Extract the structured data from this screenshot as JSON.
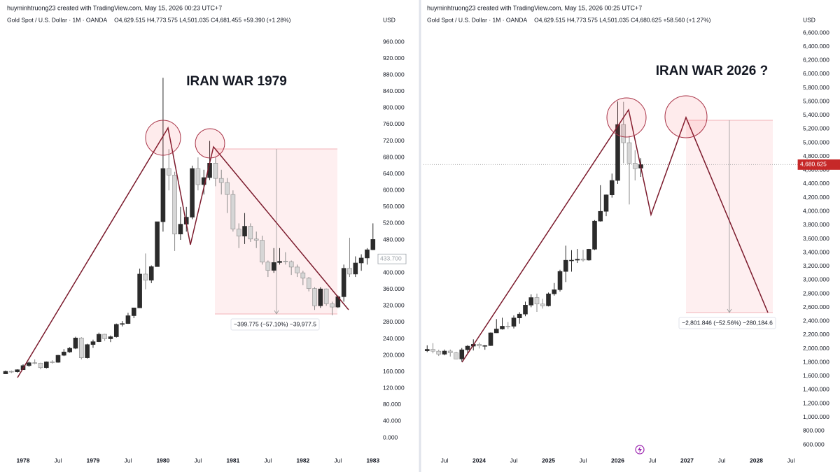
{
  "chart_data": [
    {
      "type": "candlestick",
      "attribution": "huyminhtruong23 created with TradingView.com, May 15, 2026 00:23 UTC+7",
      "symbol": "Gold Spot / U.S. Dollar · 1M · OANDA",
      "ohlc": "O4,629.515   H4,773.575   L4,501.035   C4,681.455   +59.390 (+1.28%)",
      "currency": "USD",
      "annotation": "IRAN WAR 1979",
      "measure_label": "−399.775 (−57.10%) −39,977.5",
      "up_color": "#2b2b2b",
      "down_color": "#d6d6d6",
      "x": [
        "1977-10",
        "1977-11",
        "1977-12",
        "1978-01",
        "1978-02",
        "1978-03",
        "1978-04",
        "1978-05",
        "1978-06",
        "1978-07",
        "1978-08",
        "1978-09",
        "1978-10",
        "1978-11",
        "1978-12",
        "1979-01",
        "1979-02",
        "1979-03",
        "1979-04",
        "1979-05",
        "1979-06",
        "1979-07",
        "1979-08",
        "1979-09",
        "1979-10",
        "1979-11",
        "1979-12",
        "1980-01",
        "1980-02",
        "1980-03",
        "1980-04",
        "1980-05",
        "1980-06",
        "1980-07",
        "1980-08",
        "1980-09",
        "1980-10",
        "1980-11",
        "1980-12",
        "1981-01",
        "1981-02",
        "1981-03",
        "1981-04",
        "1981-05",
        "1981-06",
        "1981-07",
        "1981-08",
        "1981-09",
        "1981-10",
        "1981-11",
        "1981-12",
        "1982-01",
        "1982-02",
        "1982-03",
        "1982-04",
        "1982-05",
        "1982-06",
        "1982-07",
        "1982-08",
        "1982-09",
        "1982-10",
        "1982-11",
        "1982-12",
        "1983-01"
      ],
      "open": [
        155,
        161,
        160,
        165,
        175,
        182,
        181,
        170,
        184,
        183,
        200,
        208,
        217,
        242,
        194,
        226,
        233,
        251,
        240,
        245,
        275,
        277,
        296,
        315,
        397,
        382,
        415,
        524,
        653,
        637,
        494,
        518,
        535,
        653,
        614,
        631,
        666,
        629,
        619,
        590,
        506,
        489,
        513,
        482,
        479,
        426,
        406,
        425,
        428,
        427,
        414,
        400,
        387,
        362,
        320,
        361,
        325,
        317,
        342,
        411,
        397,
        424,
        436,
        456
      ],
      "high": [
        163,
        163,
        166,
        178,
        185,
        190,
        182,
        185,
        188,
        201,
        215,
        220,
        245,
        244,
        228,
        238,
        255,
        252,
        248,
        277,
        283,
        303,
        315,
        410,
        447,
        418,
        524,
        873,
        700,
        645,
        560,
        560,
        660,
        680,
        650,
        720,
        680,
        650,
        630,
        600,
        520,
        545,
        520,
        500,
        490,
        430,
        460,
        460,
        450,
        430,
        420,
        405,
        390,
        365,
        365,
        362,
        330,
        345,
        420,
        485,
        440,
        445,
        460,
        520
      ],
      "low": [
        155,
        157,
        158,
        165,
        172,
        178,
        166,
        168,
        180,
        182,
        198,
        206,
        215,
        190,
        192,
        218,
        232,
        235,
        232,
        243,
        270,
        276,
        290,
        315,
        360,
        375,
        415,
        500,
        600,
        453,
        480,
        500,
        530,
        600,
        590,
        625,
        610,
        590,
        545,
        500,
        460,
        470,
        475,
        460,
        420,
        390,
        400,
        420,
        420,
        395,
        390,
        370,
        355,
        310,
        315,
        320,
        297,
        315,
        330,
        390,
        390,
        405,
        420,
        455
      ],
      "close": [
        161,
        160,
        165,
        175,
        182,
        181,
        170,
        184,
        183,
        200,
        208,
        217,
        242,
        194,
        226,
        233,
        251,
        240,
        245,
        275,
        277,
        296,
        315,
        397,
        382,
        415,
        524,
        653,
        637,
        494,
        518,
        535,
        653,
        614,
        631,
        666,
        629,
        619,
        590,
        506,
        489,
        513,
        482,
        479,
        426,
        406,
        425,
        428,
        427,
        414,
        400,
        387,
        362,
        320,
        361,
        325,
        317,
        342,
        411,
        397,
        424,
        436,
        456,
        481
      ],
      "last_price": {
        "value": 433.7,
        "label": "433.700"
      },
      "ylim": [
        0,
        960
      ],
      "yticks": [
        {
          "value": 0,
          "label": "0.000"
        },
        {
          "value": 40,
          "label": "40.000"
        },
        {
          "value": 80,
          "label": "80.000"
        },
        {
          "value": 120,
          "label": "120.000"
        },
        {
          "value": 160,
          "label": "160.000"
        },
        {
          "value": 200,
          "label": "200.000"
        },
        {
          "value": 240,
          "label": "240.000"
        },
        {
          "value": 280,
          "label": "280.000"
        },
        {
          "value": 320,
          "label": "320.000"
        },
        {
          "value": 360,
          "label": "360.000"
        },
        {
          "value": 400,
          "label": "400.000"
        },
        {
          "value": 440,
          "label": "440.000"
        },
        {
          "value": 480,
          "label": "480.000"
        },
        {
          "value": 520,
          "label": "520.000"
        },
        {
          "value": 560,
          "label": "560.000"
        },
        {
          "value": 600,
          "label": "600.000"
        },
        {
          "value": 640,
          "label": "640.000"
        },
        {
          "value": 680,
          "label": "680.000"
        },
        {
          "value": 720,
          "label": "720.000"
        },
        {
          "value": 760,
          "label": "760.000"
        },
        {
          "value": 800,
          "label": "800.000"
        },
        {
          "value": 840,
          "label": "840.000"
        },
        {
          "value": 880,
          "label": "880.000"
        },
        {
          "value": 920,
          "label": "920.000"
        },
        {
          "value": 960,
          "label": "960.000"
        }
      ],
      "xticks": [
        {
          "value": "1978-01",
          "label": "1978"
        },
        {
          "value": "1978-07",
          "label": "Jul"
        },
        {
          "value": "1979-01",
          "label": "1979"
        },
        {
          "value": "1979-07",
          "label": "Jul"
        },
        {
          "value": "1980-01",
          "label": "1980"
        },
        {
          "value": "1980-07",
          "label": "Jul"
        },
        {
          "value": "1981-01",
          "label": "1981"
        },
        {
          "value": "1981-07",
          "label": "Jul"
        },
        {
          "value": "1982-01",
          "label": "1982"
        },
        {
          "value": "1982-07",
          "label": "Jul"
        },
        {
          "value": "1983-01",
          "label": "1983"
        }
      ]
    },
    {
      "type": "candlestick",
      "attribution": "huyminhtruong23 created with TradingView.com, May 15, 2026 00:25 UTC+7",
      "symbol": "Gold Spot / U.S. Dollar · 1M · OANDA",
      "ohlc": "O4,629.515   H4,773.575   L4,501.035   C4,680.625   +58.560 (+1.27%)",
      "currency": "USD",
      "annotation": "IRAN WAR 2026 ?",
      "measure_label": "−2,801.846 (−52.56%) −280,184.6",
      "up_color": "#2b2b2b",
      "down_color": "#d6d6d6",
      "x": [
        "2023-04",
        "2023-05",
        "2023-06",
        "2023-07",
        "2023-08",
        "2023-09",
        "2023-10",
        "2023-11",
        "2023-12",
        "2024-01",
        "2024-02",
        "2024-03",
        "2024-04",
        "2024-05",
        "2024-06",
        "2024-07",
        "2024-08",
        "2024-09",
        "2024-10",
        "2024-11",
        "2024-12",
        "2025-01",
        "2025-02",
        "2025-03",
        "2025-04",
        "2025-05",
        "2025-06",
        "2025-07",
        "2025-08",
        "2025-09",
        "2025-10",
        "2025-11",
        "2025-12",
        "2026-01",
        "2026-02",
        "2026-03",
        "2026-04",
        "2026-05"
      ],
      "open": [
        1969,
        1990,
        1963,
        1919,
        1965,
        1940,
        1849,
        1983,
        2036,
        2063,
        2039,
        2044,
        2230,
        2286,
        2327,
        2326,
        2447,
        2503,
        2634,
        2744,
        2650,
        2624,
        2798,
        2858,
        3124,
        3288,
        3289,
        3303,
        3290,
        3448,
        3858,
        4000,
        4240,
        4450,
        5265,
        5000,
        4700,
        4629.515
      ],
      "high": [
        2048,
        2079,
        1983,
        1987,
        1987,
        1953,
        2009,
        2052,
        2135,
        2088,
        2052,
        2236,
        2431,
        2450,
        2387,
        2483,
        2531,
        2685,
        2790,
        2801,
        2726,
        2817,
        2956,
        3149,
        3500,
        3435,
        3452,
        3439,
        3453,
        3872,
        4381,
        4245,
        4550,
        5600,
        5595,
        5100,
        4890,
        4773.575
      ],
      "low": [
        1950,
        1932,
        1893,
        1902,
        1885,
        1846,
        1810,
        1931,
        1973,
        2002,
        1984,
        2039,
        2228,
        2277,
        2286,
        2293,
        2364,
        2472,
        2603,
        2536,
        2583,
        2614,
        2772,
        2832,
        2970,
        3121,
        3248,
        3268,
        3281,
        3436,
        3850,
        3930,
        4200,
        4400,
        4700,
        4100,
        4450,
        4501.035
      ],
      "close": [
        1990,
        1963,
        1919,
        1965,
        1940,
        1849,
        1983,
        2036,
        2063,
        2039,
        2044,
        2230,
        2286,
        2327,
        2326,
        2447,
        2503,
        2634,
        2744,
        2650,
        2624,
        2798,
        2858,
        3124,
        3288,
        3289,
        3303,
        3290,
        3448,
        3858,
        4000,
        4240,
        4450,
        5265,
        5000,
        4700,
        4622,
        4680.625
      ],
      "last_price": {
        "value": 4680.625,
        "label": "4,680.625"
      },
      "ylim": [
        600,
        6600
      ],
      "yticks": [
        {
          "value": 600,
          "label": "600.000"
        },
        {
          "value": 800,
          "label": "800.000"
        },
        {
          "value": 1000,
          "label": "1,000.000"
        },
        {
          "value": 1200,
          "label": "1,200.000"
        },
        {
          "value": 1400,
          "label": "1,400.000"
        },
        {
          "value": 1600,
          "label": "1,600.000"
        },
        {
          "value": 1800,
          "label": "1,800.000"
        },
        {
          "value": 2000,
          "label": "2,000.000"
        },
        {
          "value": 2200,
          "label": "2,200.000"
        },
        {
          "value": 2400,
          "label": "2,400.000"
        },
        {
          "value": 2600,
          "label": "2,600.000"
        },
        {
          "value": 2800,
          "label": "2,800.000"
        },
        {
          "value": 3000,
          "label": "3,000.000"
        },
        {
          "value": 3200,
          "label": "3,200.000"
        },
        {
          "value": 3400,
          "label": "3,400.000"
        },
        {
          "value": 3600,
          "label": "3,600.000"
        },
        {
          "value": 3800,
          "label": "3,800.000"
        },
        {
          "value": 4000,
          "label": "4,000.000"
        },
        {
          "value": 4200,
          "label": "4,200.000"
        },
        {
          "value": 4400,
          "label": "4,400.000"
        },
        {
          "value": 4600,
          "label": "4,600.000"
        },
        {
          "value": 4800,
          "label": "4,800.000"
        },
        {
          "value": 5000,
          "label": "5,000.000"
        },
        {
          "value": 5200,
          "label": "5,200.000"
        },
        {
          "value": 5400,
          "label": "5,400.000"
        },
        {
          "value": 5600,
          "label": "5,600.000"
        },
        {
          "value": 5800,
          "label": "5,800.000"
        },
        {
          "value": 6000,
          "label": "6,000.000"
        },
        {
          "value": 6200,
          "label": "6,200.000"
        },
        {
          "value": 6400,
          "label": "6,400.000"
        },
        {
          "value": 6600,
          "label": "6,600.000"
        }
      ],
      "xticks": [
        {
          "value": "2023-07",
          "label": "Jul"
        },
        {
          "value": "2024-01",
          "label": "2024"
        },
        {
          "value": "2024-07",
          "label": "Jul"
        },
        {
          "value": "2025-01",
          "label": "2025"
        },
        {
          "value": "2025-07",
          "label": "Jul"
        },
        {
          "value": "2026-01",
          "label": "2026"
        },
        {
          "value": "2026-07",
          "label": "Jul"
        },
        {
          "value": "2027-01",
          "label": "2027"
        },
        {
          "value": "2027-07",
          "label": "Jul"
        },
        {
          "value": "2028-01",
          "label": "2028"
        },
        {
          "value": "2028-07",
          "label": "Jul"
        }
      ]
    }
  ]
}
